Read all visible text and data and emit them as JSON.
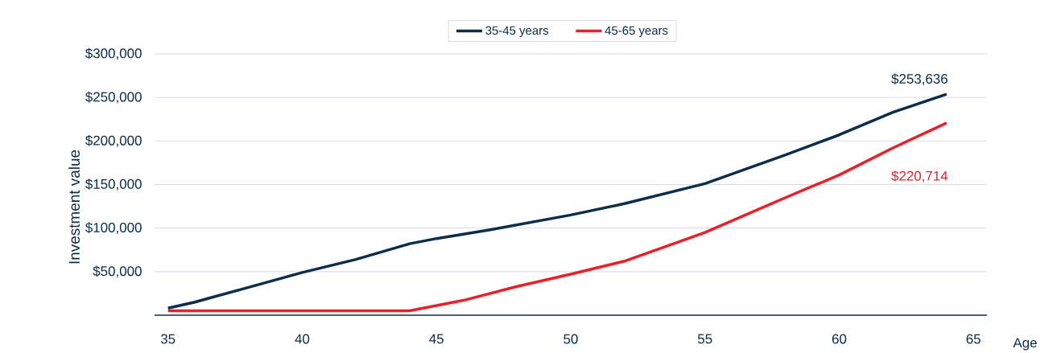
{
  "chart_data": {
    "type": "line",
    "xlabel": "Age",
    "ylabel": "Investment value",
    "xlim": [
      34.5,
      65.5
    ],
    "ylim": [
      0,
      300000
    ],
    "xticks": [
      35,
      40,
      45,
      50,
      55,
      60,
      65
    ],
    "yticks": [
      {
        "value": 50000,
        "label": "$50,000"
      },
      {
        "value": 100000,
        "label": "$100,000"
      },
      {
        "value": 150000,
        "label": "$150,000"
      },
      {
        "value": 200000,
        "label": "$200,000"
      },
      {
        "value": 250000,
        "label": "$250,000"
      },
      {
        "value": 300000,
        "label": "$300,000"
      }
    ],
    "grid": "y",
    "legend": "top",
    "line_style": "solid",
    "series": [
      {
        "name": "35-45 years",
        "color": "#0d2e4a",
        "x": [
          35,
          36,
          38,
          40,
          42,
          44,
          45,
          47,
          50,
          52,
          55,
          58,
          60,
          62,
          64
        ],
        "values": [
          8000,
          15000,
          32000,
          49000,
          64000,
          82000,
          88000,
          98000,
          115000,
          128000,
          151000,
          184000,
          207000,
          233000,
          253636
        ]
      },
      {
        "name": "45-65 years",
        "color": "#e8202a",
        "x": [
          35,
          44,
          46,
          48,
          50,
          52,
          55,
          58,
          60,
          62,
          64
        ],
        "values": [
          5000,
          5000,
          17000,
          33000,
          47000,
          62000,
          95000,
          135000,
          161000,
          192000,
          220714
        ]
      }
    ],
    "annotations": [
      {
        "text": "$253,636",
        "x": 64,
        "y": 253636
      },
      "$220,714"
    ]
  }
}
